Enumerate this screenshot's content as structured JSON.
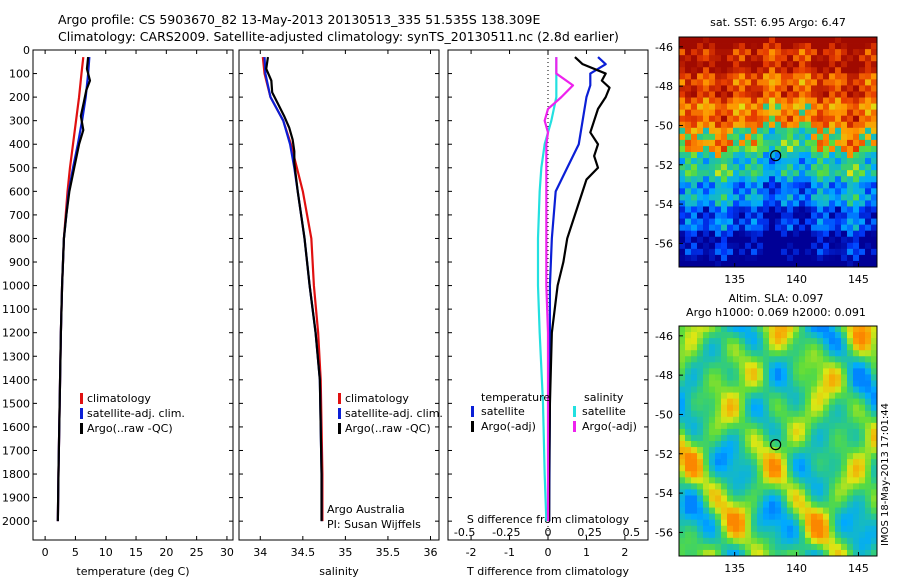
{
  "header": {
    "line1": "Argo profile: CS 5903670_82 13-May-2013 20130513_335 51.535S 138.309E",
    "line2": "Climatology: CARS2009. Satellite-adjusted climatology: synTS_20130511.nc (2.8d earlier)"
  },
  "colors": {
    "climatology": "#e01010",
    "satellite": "#0b1fd6",
    "argo": "#000000",
    "sat_salinity": "#22e0e0",
    "argo_salinity": "#ee22ee"
  },
  "side_note": "IMOS 18-May-2013 17:01:44",
  "chart_data": [
    {
      "type": "line",
      "name": "temperature-panel",
      "xlabel": "temperature (deg C)",
      "ylabel": "",
      "xlim": [
        -2,
        31
      ],
      "ylim": [
        2080,
        0
      ],
      "xticks": [
        0,
        5,
        10,
        15,
        20,
        25,
        30
      ],
      "xtick_labels": [
        "0",
        "5",
        "10",
        "15",
        "20",
        "25",
        "30"
      ],
      "yticks": [
        0,
        100,
        200,
        300,
        400,
        500,
        600,
        700,
        800,
        900,
        1000,
        1100,
        1200,
        1300,
        1400,
        1500,
        1600,
        1700,
        1800,
        1900,
        2000
      ],
      "ytick_labels": [
        "0",
        "100",
        "200",
        "300",
        "400",
        "500",
        "600",
        "700",
        "800",
        "900",
        "1000",
        "1100",
        "1200",
        "1300",
        "1400",
        "1500",
        "1600",
        "1700",
        "1800",
        "1900",
        "2000"
      ],
      "legend": [
        "climatology",
        "satellite-adj. clim.",
        "Argo(..raw -QC)"
      ],
      "series": [
        {
          "name": "climatology",
          "color": "red",
          "depth": [
            30,
            100,
            200,
            300,
            400,
            500,
            600,
            700,
            800,
            1000,
            1200,
            1500,
            1800,
            2000
          ],
          "values": [
            6.3,
            6.0,
            5.6,
            5.1,
            4.6,
            4.1,
            3.7,
            3.4,
            3.1,
            2.8,
            2.6,
            2.4,
            2.2,
            2.1
          ]
        },
        {
          "name": "satellite-adj. clim.",
          "color": "blue",
          "depth": [
            30,
            100,
            200,
            300,
            400,
            500,
            600,
            700,
            800,
            1000,
            1200,
            1500,
            1800,
            2000
          ],
          "values": [
            7.3,
            7.1,
            6.7,
            6.1,
            5.4,
            4.6,
            3.9,
            3.5,
            3.1,
            2.8,
            2.6,
            2.4,
            2.2,
            2.1
          ]
        },
        {
          "name": "Argo(..raw -QC)",
          "color": "black",
          "depth": [
            30,
            80,
            130,
            170,
            220,
            280,
            340,
            400,
            450,
            500,
            600,
            700,
            800,
            1000,
            1200,
            1500,
            1800,
            2000
          ],
          "values": [
            7.1,
            6.9,
            7.4,
            6.8,
            6.4,
            5.9,
            6.3,
            5.6,
            5.2,
            4.8,
            4.0,
            3.5,
            3.1,
            2.8,
            2.6,
            2.4,
            2.2,
            2.1
          ]
        }
      ]
    },
    {
      "type": "line",
      "name": "salinity-panel",
      "xlabel": "salinity",
      "ylabel": "",
      "xlim": [
        33.75,
        36.1
      ],
      "ylim": [
        2080,
        0
      ],
      "xticks": [
        34,
        34.5,
        35,
        35.5,
        36
      ],
      "xtick_labels": [
        "34",
        "34.5",
        "35",
        "35.5",
        "36"
      ],
      "legend": [
        "climatology",
        "satellite-adj. clim.",
        "Argo(..raw -QC)"
      ],
      "annotation": [
        "Argo Australia",
        "PI: Susan Wijffels"
      ],
      "series": [
        {
          "name": "climatology",
          "color": "red",
          "depth": [
            30,
            100,
            200,
            300,
            400,
            500,
            600,
            700,
            800,
            1000,
            1200,
            1400,
            1600,
            1800,
            2000
          ],
          "values": [
            34.03,
            34.05,
            34.12,
            34.27,
            34.36,
            34.43,
            34.5,
            34.55,
            34.6,
            34.63,
            34.68,
            34.71,
            34.72,
            34.73,
            34.73
          ]
        },
        {
          "name": "satellite-adj. clim.",
          "color": "blue",
          "depth": [
            30,
            100,
            200,
            300,
            400,
            500,
            600,
            700,
            800,
            1000,
            1200,
            1400,
            1600,
            1800,
            2000
          ],
          "values": [
            34.05,
            34.06,
            34.12,
            34.27,
            34.35,
            34.4,
            34.44,
            34.48,
            34.52,
            34.58,
            34.65,
            34.7,
            34.71,
            34.72,
            34.72
          ]
        },
        {
          "name": "Argo(..raw -QC)",
          "color": "black",
          "depth": [
            30,
            80,
            130,
            180,
            230,
            280,
            330,
            380,
            430,
            480,
            540,
            600,
            700,
            800,
            1000,
            1200,
            1400,
            1600,
            1800,
            2000
          ],
          "values": [
            34.09,
            34.07,
            34.13,
            34.14,
            34.21,
            34.28,
            34.34,
            34.38,
            34.4,
            34.4,
            34.42,
            34.44,
            34.48,
            34.52,
            34.58,
            34.65,
            34.7,
            34.71,
            34.72,
            34.72
          ]
        }
      ]
    },
    {
      "type": "line",
      "name": "difference-panel",
      "xlabel": "T difference from climatology",
      "xlabel_top": "S difference from climatology",
      "ylabel": "",
      "xlim": [
        -2.6,
        2.6
      ],
      "ylim": [
        2080,
        0
      ],
      "xticks": [
        -2,
        -1,
        0,
        1,
        2
      ],
      "xtick_labels": [
        "-2",
        "-1",
        "0",
        "1",
        "2"
      ],
      "s_xticks": [
        -0.5,
        -0.25,
        0,
        0.25,
        0.5
      ],
      "s_xtick_labels": [
        "-0.5",
        "-0.25",
        "0",
        "0.25",
        "0.5"
      ],
      "legend_headers": [
        "temperature",
        "salinity"
      ],
      "legend": [
        "satellite",
        "Argo(-adj)",
        "satellite",
        "Argo(-adj)"
      ],
      "series": [
        {
          "name": "satellite",
          "quantity": "temperature",
          "color": "blue",
          "depth": [
            30,
            60,
            100,
            150,
            200,
            300,
            400,
            500,
            600,
            800,
            1000,
            1500,
            2000
          ],
          "values": [
            1.3,
            1.5,
            1.1,
            1.1,
            1.0,
            0.9,
            0.8,
            0.5,
            0.2,
            0.1,
            0.05,
            0.05,
            0.03
          ]
        },
        {
          "name": "Argo(-adj)",
          "quantity": "temperature",
          "color": "black",
          "depth": [
            30,
            60,
            100,
            130,
            160,
            200,
            250,
            300,
            350,
            400,
            450,
            500,
            550,
            600,
            700,
            800,
            900,
            1000,
            1200,
            1500,
            1800,
            2000
          ],
          "values": [
            0.7,
            0.9,
            1.5,
            1.4,
            1.6,
            1.5,
            1.3,
            1.2,
            1.1,
            1.3,
            1.2,
            1.3,
            1.0,
            0.9,
            0.7,
            0.5,
            0.4,
            0.25,
            0.1,
            0.05,
            0.03,
            0.03
          ]
        },
        {
          "name": "satellite",
          "quantity": "salinity",
          "color": "cyan",
          "depth": [
            30,
            100,
            200,
            300,
            400,
            500,
            600,
            800,
            1000,
            1200,
            1500,
            1800,
            2000
          ],
          "values": [
            0.05,
            0.05,
            0.05,
            0.02,
            -0.02,
            -0.04,
            -0.05,
            -0.06,
            -0.06,
            -0.05,
            -0.03,
            -0.02,
            -0.01
          ]
        },
        {
          "name": "Argo(-adj)",
          "quantity": "salinity",
          "color": "magenta",
          "depth": [
            30,
            100,
            150,
            200,
            250,
            300,
            350,
            400,
            500,
            600,
            800,
            1000,
            1200,
            1500,
            1800,
            2000
          ],
          "values": [
            0.05,
            0.05,
            0.15,
            0.08,
            0.0,
            -0.02,
            0.0,
            -0.01,
            -0.01,
            -0.01,
            -0.01,
            -0.01,
            0.0,
            0.0,
            0.0,
            0.0
          ]
        }
      ]
    },
    {
      "type": "heatmap",
      "name": "sst-map",
      "title": "sat. SST: 6.95 Argo: 6.47",
      "xlim": [
        130.5,
        146.5
      ],
      "ylim": [
        -57.2,
        -45.5
      ],
      "xticks": [
        135,
        140,
        145
      ],
      "yticks": [
        -46,
        -48,
        -50,
        -52,
        -54,
        -56
      ],
      "marker": {
        "lon": 138.309,
        "lat": -51.535
      }
    },
    {
      "type": "heatmap",
      "name": "sla-map",
      "title_line1": "Altim. SLA: 0.097",
      "title_line2": "Argo h1000: 0.069 h2000: 0.091",
      "xlim": [
        130.5,
        146.5
      ],
      "ylim": [
        -57.2,
        -45.5
      ],
      "xticks": [
        135,
        140,
        145
      ],
      "yticks": [
        -46,
        -48,
        -50,
        -52,
        -54,
        -56
      ],
      "marker": {
        "lon": 138.309,
        "lat": -51.535
      }
    }
  ]
}
